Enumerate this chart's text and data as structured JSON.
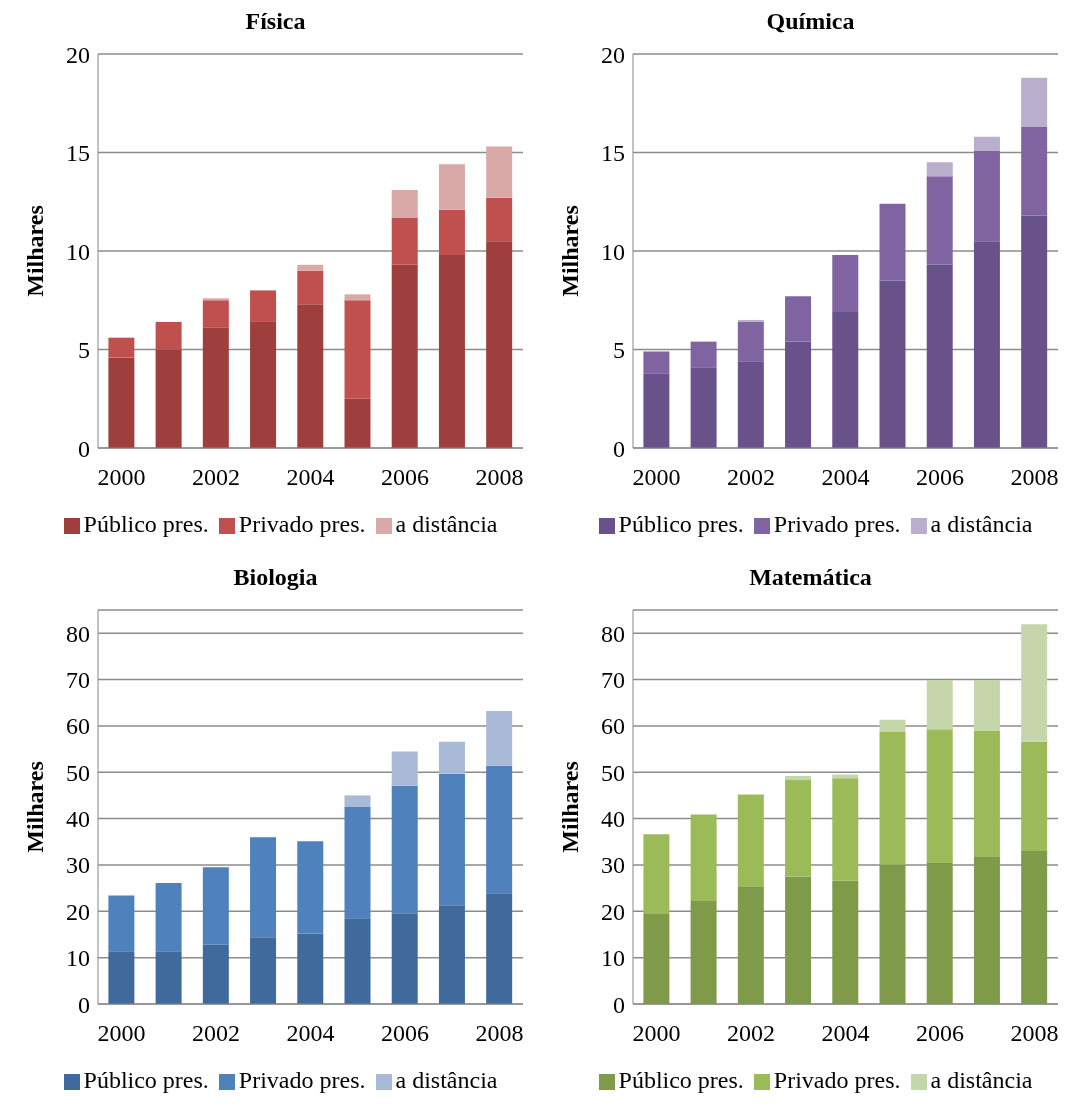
{
  "chart_data": [
    {
      "type": "bar",
      "title": "Física",
      "ylabel": "Milhares",
      "stacked": true,
      "categories": [
        "2000",
        null,
        "2002",
        null,
        "2004",
        null,
        "2006",
        null,
        "2008"
      ],
      "ylim": [
        0,
        20
      ],
      "yticks": [
        0,
        5,
        10,
        15,
        20
      ],
      "grid": "y",
      "legend": "bottom",
      "series": [
        {
          "name": "Público pres.",
          "color": "#9e3f3d",
          "values": [
            4.6,
            5.0,
            6.1,
            6.4,
            7.3,
            2.5,
            9.3,
            9.8,
            10.5
          ]
        },
        {
          "name": "Privado pres.",
          "color": "#c0504d",
          "values": [
            1.0,
            1.4,
            1.4,
            1.6,
            1.7,
            5.0,
            2.4,
            2.3,
            2.2
          ]
        },
        {
          "name": "a distância",
          "color": "#d9a9a8",
          "values": [
            0,
            0,
            0.1,
            0,
            0.3,
            0.3,
            1.4,
            2.3,
            2.6
          ]
        }
      ]
    },
    {
      "type": "bar",
      "title": "Química",
      "ylabel": "Milhares",
      "stacked": true,
      "categories": [
        "2000",
        null,
        "2002",
        null,
        "2004",
        null,
        "2006",
        null,
        "2008"
      ],
      "ylim": [
        0,
        20
      ],
      "yticks": [
        0,
        5,
        10,
        15,
        20
      ],
      "grid": "y",
      "legend": "bottom",
      "series": [
        {
          "name": "Público pres.",
          "color": "#69518a",
          "values": [
            3.8,
            4.1,
            4.4,
            5.4,
            6.9,
            8.5,
            9.3,
            10.5,
            11.8
          ]
        },
        {
          "name": "Privado pres.",
          "color": "#8064a2",
          "values": [
            1.1,
            1.3,
            2.0,
            2.3,
            2.9,
            3.9,
            4.5,
            4.6,
            4.5
          ]
        },
        {
          "name": "a distância",
          "color": "#b9aecb",
          "values": [
            0,
            0,
            0.1,
            0,
            0,
            0,
            0.7,
            0.7,
            2.5
          ]
        }
      ]
    },
    {
      "type": "bar",
      "title": "Biologia",
      "ylabel": "Milhares",
      "stacked": true,
      "categories": [
        "2000",
        null,
        "2002",
        null,
        "2004",
        null,
        "2006",
        null,
        "2008"
      ],
      "ylim": [
        0,
        85
      ],
      "yticks": [
        0,
        10,
        20,
        30,
        40,
        50,
        60,
        70,
        80
      ],
      "grid": "y",
      "legend": "bottom",
      "series": [
        {
          "name": "Público pres.",
          "color": "#416a9c",
          "values": [
            11.4,
            11.4,
            12.8,
            14.4,
            15.2,
            18.5,
            19.6,
            21.3,
            23.9
          ]
        },
        {
          "name": "Privado pres.",
          "color": "#4f81bd",
          "values": [
            12.0,
            14.7,
            16.7,
            21.6,
            19.9,
            24.0,
            27.5,
            28.4,
            27.5
          ]
        },
        {
          "name": "a distância",
          "color": "#a9bad8",
          "values": [
            0,
            0,
            null,
            null,
            0,
            2.5,
            7.4,
            6.9,
            11.8
          ]
        }
      ]
    },
    {
      "type": "bar",
      "title": "Matemática",
      "ylabel": "Milhares",
      "stacked": true,
      "categories": [
        "2000",
        null,
        "2002",
        null,
        "2004",
        null,
        "2006",
        null,
        "2008"
      ],
      "ylim": [
        0,
        85
      ],
      "yticks": [
        0,
        10,
        20,
        30,
        40,
        50,
        60,
        70,
        80
      ],
      "grid": "y",
      "legend": "bottom",
      "series": [
        {
          "name": "Público pres.",
          "color": "#7f9b4a",
          "values": [
            19.6,
            22.2,
            25.4,
            27.5,
            26.6,
            30.1,
            30.4,
            31.7,
            33.0
          ]
        },
        {
          "name": "Privado pres.",
          "color": "#9bbb59",
          "values": [
            17.0,
            18.7,
            19.8,
            20.8,
            22.1,
            28.6,
            28.9,
            27.3,
            23.6
          ]
        },
        {
          "name": "a distância",
          "color": "#c6d6ab",
          "values": [
            0,
            0,
            null,
            0.9,
            0.8,
            2.6,
            10.6,
            10.9,
            25.3
          ]
        }
      ]
    }
  ]
}
